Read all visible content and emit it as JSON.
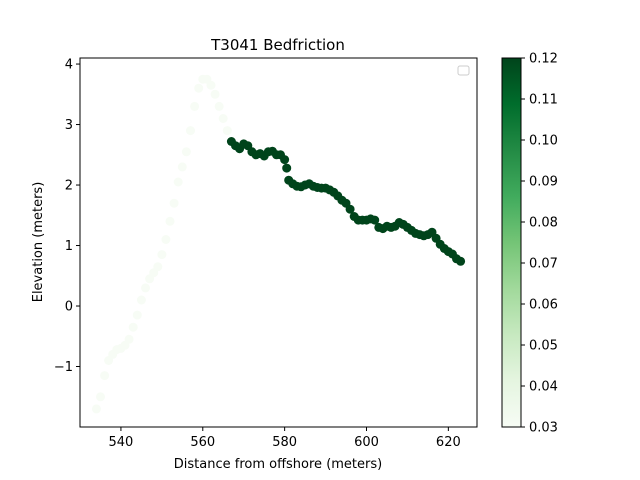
{
  "chart_data": {
    "type": "scatter",
    "title": "T3041 Bedfriction",
    "xlabel": "Distance from offshore (meters)",
    "ylabel": "Elevation (meters)",
    "xlim": [
      530,
      627
    ],
    "ylim": [
      -2.0,
      4.1
    ],
    "xticks": [
      "540",
      "560",
      "580",
      "600",
      "620"
    ],
    "yticks": [
      "−1",
      "0",
      "1",
      "2",
      "3",
      "4"
    ],
    "legend": {
      "placement": "top-right",
      "entries": []
    },
    "grid": false,
    "colorbar": {
      "colormap": "Greens",
      "range": [
        0.03,
        0.12
      ],
      "ticks": [
        "0.03",
        "0.04",
        "0.05",
        "0.06",
        "0.07",
        "0.08",
        "0.09",
        "0.10",
        "0.11",
        "0.12"
      ]
    },
    "segments": [
      {
        "value": 0.03,
        "x": [
          534,
          535,
          536,
          537,
          538,
          539,
          540,
          541,
          542,
          543,
          544,
          545,
          546,
          547,
          548,
          549,
          550,
          551,
          552,
          553,
          554,
          555,
          556,
          557,
          558,
          559,
          560,
          561,
          562,
          563,
          564,
          565,
          566
        ],
        "y": [
          -1.7,
          -1.5,
          -1.15,
          -0.9,
          -0.8,
          -0.72,
          -0.7,
          -0.65,
          -0.55,
          -0.35,
          -0.15,
          0.1,
          0.3,
          0.45,
          0.55,
          0.65,
          0.85,
          1.1,
          1.4,
          1.7,
          2.05,
          2.3,
          2.55,
          2.9,
          3.3,
          3.6,
          3.75,
          3.75,
          3.65,
          3.5,
          3.3,
          3.1,
          2.9
        ]
      },
      {
        "value": 0.12,
        "x": [
          567,
          568,
          569,
          570,
          571,
          572,
          573,
          574,
          575,
          576,
          577,
          578,
          579,
          580,
          580.5,
          581,
          582,
          583,
          584,
          585,
          586,
          587,
          588,
          589,
          590,
          591,
          592,
          593,
          594,
          595,
          596,
          597,
          598,
          599,
          600,
          601,
          602,
          603,
          604,
          605,
          606,
          607,
          608,
          609,
          610,
          611,
          612,
          613,
          614,
          615,
          616,
          617,
          618,
          619,
          620,
          621,
          622,
          623
        ],
        "y": [
          2.72,
          2.65,
          2.6,
          2.68,
          2.65,
          2.55,
          2.5,
          2.52,
          2.48,
          2.55,
          2.56,
          2.5,
          2.5,
          2.42,
          2.28,
          2.08,
          2.02,
          1.98,
          1.97,
          2.0,
          2.02,
          1.98,
          1.96,
          1.95,
          1.95,
          1.92,
          1.88,
          1.82,
          1.75,
          1.7,
          1.6,
          1.48,
          1.42,
          1.42,
          1.42,
          1.44,
          1.42,
          1.3,
          1.28,
          1.32,
          1.3,
          1.32,
          1.38,
          1.35,
          1.3,
          1.25,
          1.2,
          1.18,
          1.16,
          1.18,
          1.22,
          1.12,
          1.02,
          0.95,
          0.9,
          0.86,
          0.78,
          0.74
        ]
      }
    ]
  }
}
